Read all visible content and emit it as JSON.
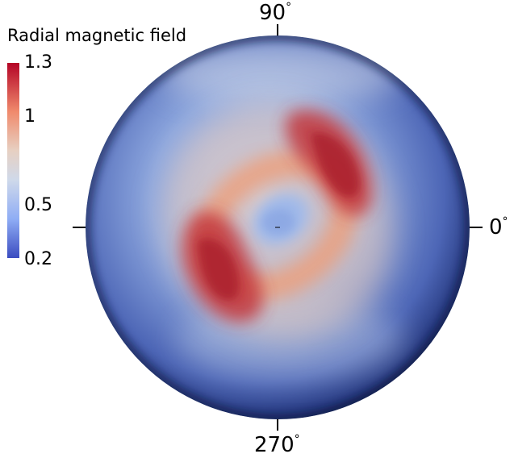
{
  "colorbar": {
    "title": "Radial magnetic field",
    "tick_labels": [
      "1.3",
      "1",
      "0.5",
      "0.2"
    ],
    "stops": [
      {
        "value": 1.3,
        "color": "#b40426"
      },
      {
        "value": 1.0,
        "color": "#f4b597"
      },
      {
        "value": 0.75,
        "color": "#dddcdc"
      },
      {
        "value": 0.5,
        "color": "#a5c2ff"
      },
      {
        "value": 0.2,
        "color": "#3b4cc0"
      }
    ]
  },
  "axes": {
    "top": {
      "value": "90",
      "unit": "°"
    },
    "right": {
      "value": "0",
      "unit": "°"
    },
    "bottom": {
      "value": "270",
      "unit": "°"
    }
  }
}
